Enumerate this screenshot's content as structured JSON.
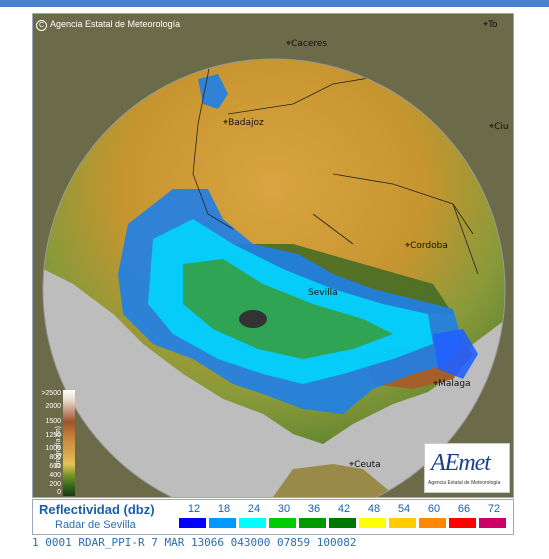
{
  "header": {
    "copyright": "Agencia Estatal de Meteorología"
  },
  "map": {
    "cities": [
      "Caceres",
      "Badajoz",
      "Cordoba",
      "Sevilla",
      "Malaga",
      "Ceuta",
      "Ciu",
      "To"
    ],
    "orography": {
      "title": "Orografía (m)",
      "ticks": [
        ">2500",
        "2000",
        "1500",
        "1250",
        "1000",
        "800",
        "600",
        "400",
        "200",
        "0"
      ]
    }
  },
  "logo": {
    "name": "AEmet",
    "subtitle": "Agencia Estatal de Meteorología"
  },
  "legend": {
    "title": "Reflectividad (dbz)",
    "radar": "Radar de Sevilla",
    "values": [
      "12",
      "18",
      "24",
      "30",
      "36",
      "42",
      "48",
      "54",
      "60",
      "66",
      "72"
    ],
    "colors": [
      "#0000ff",
      "#0099ff",
      "#00ffff",
      "#00cc00",
      "#009900",
      "#007700",
      "#ffff00",
      "#ffcc00",
      "#ff8800",
      "#ff0000",
      "#cc0066"
    ]
  },
  "status": {
    "text": "1 0001 RDAR_PPI-R   7 MAR 13066 043000 07859 100082"
  }
}
